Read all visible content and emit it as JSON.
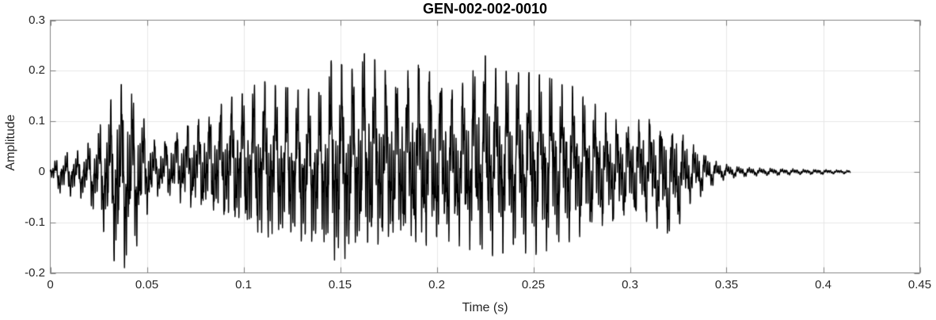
{
  "figure": {
    "title": "GEN-002-002-0010",
    "xlabel": "Time (s)",
    "ylabel": "Amplitude"
  },
  "colors": {
    "background": "#ffffff",
    "axis_box": "#848484",
    "tick_mark": "#7d7d7d",
    "grid": "#e7e7e7",
    "tick_text": "#262626",
    "title_text": "#000000",
    "waveform": "#000000"
  },
  "chart_data": {
    "type": "line",
    "title": "GEN-002-002-0010",
    "xlabel": "Time (s)",
    "ylabel": "Amplitude",
    "xlim": [
      0,
      0.45
    ],
    "ylim": [
      -0.2,
      0.3
    ],
    "xticks": [
      0,
      0.05,
      0.1,
      0.15,
      0.2,
      0.25,
      0.3,
      0.35,
      0.4,
      0.45
    ],
    "yticks": [
      -0.2,
      -0.1,
      0,
      0.1,
      0.2,
      0.3
    ],
    "grid": true,
    "legend": null,
    "line_color": "#000000",
    "series_name": "speech waveform",
    "signal_end_s": 0.414,
    "peak_amplitude": 0.237,
    "peak_time_s": 0.164,
    "min_amplitude": -0.2,
    "min_time_s": 0.036,
    "signal_envelope": {
      "note": "dense quasi-periodic speech waveform; upper/lower amplitude envelopes sampled every 5 ms, fundamental ~175 Hz",
      "f0_hz": 175,
      "t": [
        0,
        0.005,
        0.01,
        0.015,
        0.02,
        0.025,
        0.03,
        0.035,
        0.04,
        0.045,
        0.05,
        0.055,
        0.06,
        0.065,
        0.07,
        0.075,
        0.08,
        0.085,
        0.09,
        0.095,
        0.1,
        0.105,
        0.11,
        0.115,
        0.12,
        0.125,
        0.13,
        0.135,
        0.14,
        0.145,
        0.15,
        0.155,
        0.16,
        0.165,
        0.17,
        0.175,
        0.18,
        0.185,
        0.19,
        0.195,
        0.2,
        0.205,
        0.21,
        0.215,
        0.22,
        0.225,
        0.23,
        0.235,
        0.24,
        0.245,
        0.25,
        0.255,
        0.26,
        0.265,
        0.27,
        0.275,
        0.28,
        0.285,
        0.29,
        0.295,
        0.3,
        0.305,
        0.31,
        0.315,
        0.32,
        0.325,
        0.33,
        0.335,
        0.34,
        0.345,
        0.35,
        0.355,
        0.36,
        0.365,
        0.37,
        0.375,
        0.38,
        0.385,
        0.39,
        0.395,
        0.4,
        0.405,
        0.41,
        0.414
      ],
      "upper": [
        0.012,
        0.032,
        0.04,
        0.042,
        0.058,
        0.085,
        0.13,
        0.175,
        0.168,
        0.14,
        0.09,
        0.055,
        0.065,
        0.08,
        0.09,
        0.1,
        0.11,
        0.12,
        0.14,
        0.15,
        0.155,
        0.17,
        0.18,
        0.172,
        0.168,
        0.165,
        0.16,
        0.165,
        0.155,
        0.22,
        0.215,
        0.195,
        0.23,
        0.237,
        0.211,
        0.195,
        0.182,
        0.2,
        0.212,
        0.205,
        0.195,
        0.172,
        0.155,
        0.185,
        0.205,
        0.23,
        0.205,
        0.2,
        0.195,
        0.198,
        0.195,
        0.19,
        0.183,
        0.172,
        0.17,
        0.15,
        0.14,
        0.125,
        0.108,
        0.1,
        0.098,
        0.105,
        0.112,
        0.105,
        0.092,
        0.09,
        0.062,
        0.052,
        0.035,
        0.02,
        0.015,
        0.011,
        0.009,
        0.008,
        0.007,
        0.007,
        0.006,
        0.006,
        0.005,
        0.005,
        0.005,
        0.004,
        0.004,
        0.003
      ],
      "lower": [
        -0.015,
        -0.042,
        -0.048,
        -0.05,
        -0.062,
        -0.095,
        -0.14,
        -0.2,
        -0.185,
        -0.145,
        -0.085,
        -0.048,
        -0.052,
        -0.058,
        -0.068,
        -0.078,
        -0.088,
        -0.098,
        -0.108,
        -0.118,
        -0.128,
        -0.138,
        -0.148,
        -0.145,
        -0.142,
        -0.145,
        -0.15,
        -0.155,
        -0.15,
        -0.185,
        -0.19,
        -0.18,
        -0.175,
        -0.18,
        -0.17,
        -0.165,
        -0.16,
        -0.165,
        -0.17,
        -0.165,
        -0.16,
        -0.15,
        -0.145,
        -0.15,
        -0.16,
        -0.17,
        -0.165,
        -0.16,
        -0.155,
        -0.16,
        -0.165,
        -0.16,
        -0.15,
        -0.14,
        -0.138,
        -0.128,
        -0.122,
        -0.112,
        -0.105,
        -0.098,
        -0.092,
        -0.095,
        -0.1,
        -0.115,
        -0.13,
        -0.11,
        -0.065,
        -0.055,
        -0.036,
        -0.02,
        -0.015,
        -0.011,
        -0.009,
        -0.008,
        -0.007,
        -0.007,
        -0.006,
        -0.006,
        -0.005,
        -0.005,
        -0.005,
        -0.004,
        -0.004,
        -0.003
      ]
    }
  }
}
